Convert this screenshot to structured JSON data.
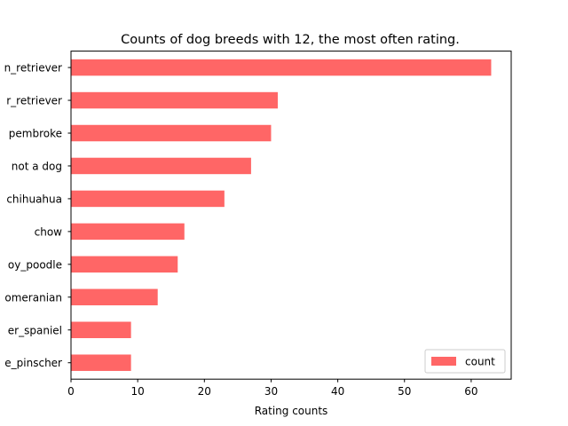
{
  "chart_data": {
    "type": "bar",
    "orientation": "horizontal",
    "title": "Counts of dog breeds with 12, the most often rating.",
    "xlabel": "Rating counts",
    "ylabel": "",
    "categories": [
      "n_retriever",
      "r_retriever",
      "pembroke",
      "not a dog",
      "chihuahua",
      "chow",
      "oy_poodle",
      "omeranian",
      "er_spaniel",
      "e_pinscher"
    ],
    "series": [
      {
        "name": "count",
        "values": [
          63,
          31,
          30,
          27,
          23,
          17,
          16,
          13,
          9,
          9
        ],
        "color": "#ff6666"
      }
    ],
    "xlim": [
      0,
      66
    ],
    "xticks": [
      0,
      10,
      20,
      30,
      40,
      50,
      60
    ],
    "grid": false,
    "legend_position": "bottom-right"
  }
}
